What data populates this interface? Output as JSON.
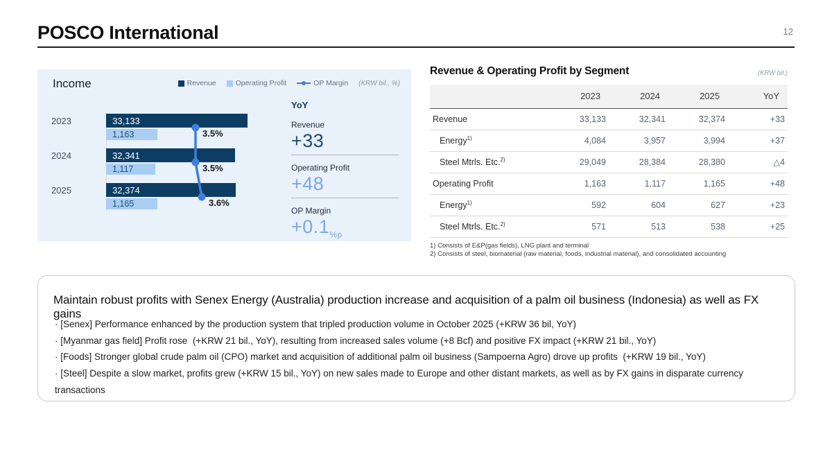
{
  "page": {
    "title": "POSCO International",
    "number": "12"
  },
  "chart": {
    "title": "Income",
    "unit_label": "(KRW bil., %)",
    "legend": [
      {
        "label": "Revenue",
        "color": "#0e3d63",
        "marker": "square"
      },
      {
        "label": "Operating Profit",
        "color": "#a9cdf3",
        "marker": "square"
      },
      {
        "label": "OP Margin",
        "color": "#3e7ede",
        "marker": "line"
      }
    ],
    "yoy": {
      "title": "YoY",
      "metrics": [
        {
          "label": "Revenue",
          "value": "+33",
          "suffix": "",
          "tone": "dark",
          "underline": true
        },
        {
          "label": "Operating Profit",
          "value": "+48",
          "suffix": "",
          "tone": "light",
          "underline": true
        },
        {
          "label": "OP Margin",
          "value": "+0.1",
          "suffix": "%p",
          "tone": "light",
          "underline": false
        }
      ]
    }
  },
  "chart_data": {
    "type": "bar",
    "orientation": "horizontal",
    "title": "Income",
    "unit": "KRW bil., %",
    "categories": [
      "2023",
      "2024",
      "2025"
    ],
    "series": [
      {
        "name": "Revenue",
        "values": [
          33133,
          32341,
          32374
        ]
      },
      {
        "name": "Operating Profit",
        "values": [
          1163,
          1117,
          1165
        ]
      },
      {
        "name": "OP Margin",
        "type": "line",
        "unit": "%",
        "values": [
          3.5,
          3.5,
          3.6
        ],
        "labels": [
          "3.5%",
          "3.5%",
          "3.6%"
        ]
      }
    ],
    "colors": {
      "revenue": "#0e3d63",
      "operating_profit": "#a9cdf3",
      "op_margin_line": "#3e7ede"
    }
  },
  "table": {
    "title": "Revenue & Operating Profit by Segment",
    "unit_label": "(KRW bil.)",
    "columns": [
      "",
      "2023",
      "2024",
      "2025",
      "YoY"
    ],
    "rows": [
      {
        "label": "Revenue",
        "sup": "",
        "indent": false,
        "values": [
          "33,133",
          "32,341",
          "32,374",
          "+33"
        ]
      },
      {
        "label": "Energy",
        "sup": "1)",
        "indent": true,
        "values": [
          "4,084",
          "3,957",
          "3,994",
          "+37"
        ]
      },
      {
        "label": "Steel Mtrls. Etc.",
        "sup": "2)",
        "indent": true,
        "values": [
          "29,049",
          "28,384",
          "28,380",
          "△4"
        ]
      },
      {
        "label": "Operating Profit",
        "sup": "",
        "indent": false,
        "values": [
          "1,163",
          "1,117",
          "1,165",
          "+48"
        ]
      },
      {
        "label": "Energy",
        "sup": "1)",
        "indent": true,
        "values": [
          "592",
          "604",
          "627",
          "+23"
        ]
      },
      {
        "label": "Steel Mtrls. Etc.",
        "sup": "2)",
        "indent": true,
        "values": [
          "571",
          "513",
          "538",
          "+25"
        ]
      }
    ],
    "footnotes": [
      "1) Consists of E&P(gas fields), LNG plant and terminal",
      "2) Consists of steel, biomaterial (raw material, foods, industrial material), and consolidated accounting"
    ]
  },
  "insights": {
    "headline": "Maintain robust profits with Senex Energy (Australia) production increase and acquisition of a palm oil business (Indonesia) as well as FX gains",
    "bullets": [
      "[Senex] Performance enhanced by the production system that tripled production volume in October 2025 (+KRW 36 bil, YoY)",
      "[Myanmar gas field] Profit rose  (+KRW 21 bil., YoY), resulting from increased sales volume (+8 Bcf) and positive FX impact (+KRW 21 bil., YoY)",
      "[Foods] Stronger global crude palm oil (CPO) market and acquisition of additional palm oil business (Sampoerna Agro) drove up profits  (+KRW 19 bil., YoY)",
      "[Steel] Despite a slow market, profits grew (+KRW 15 bil., YoY) on new sales made to Europe and other distant markets, as well as by FX gains in disparate currency transactions"
    ]
  }
}
